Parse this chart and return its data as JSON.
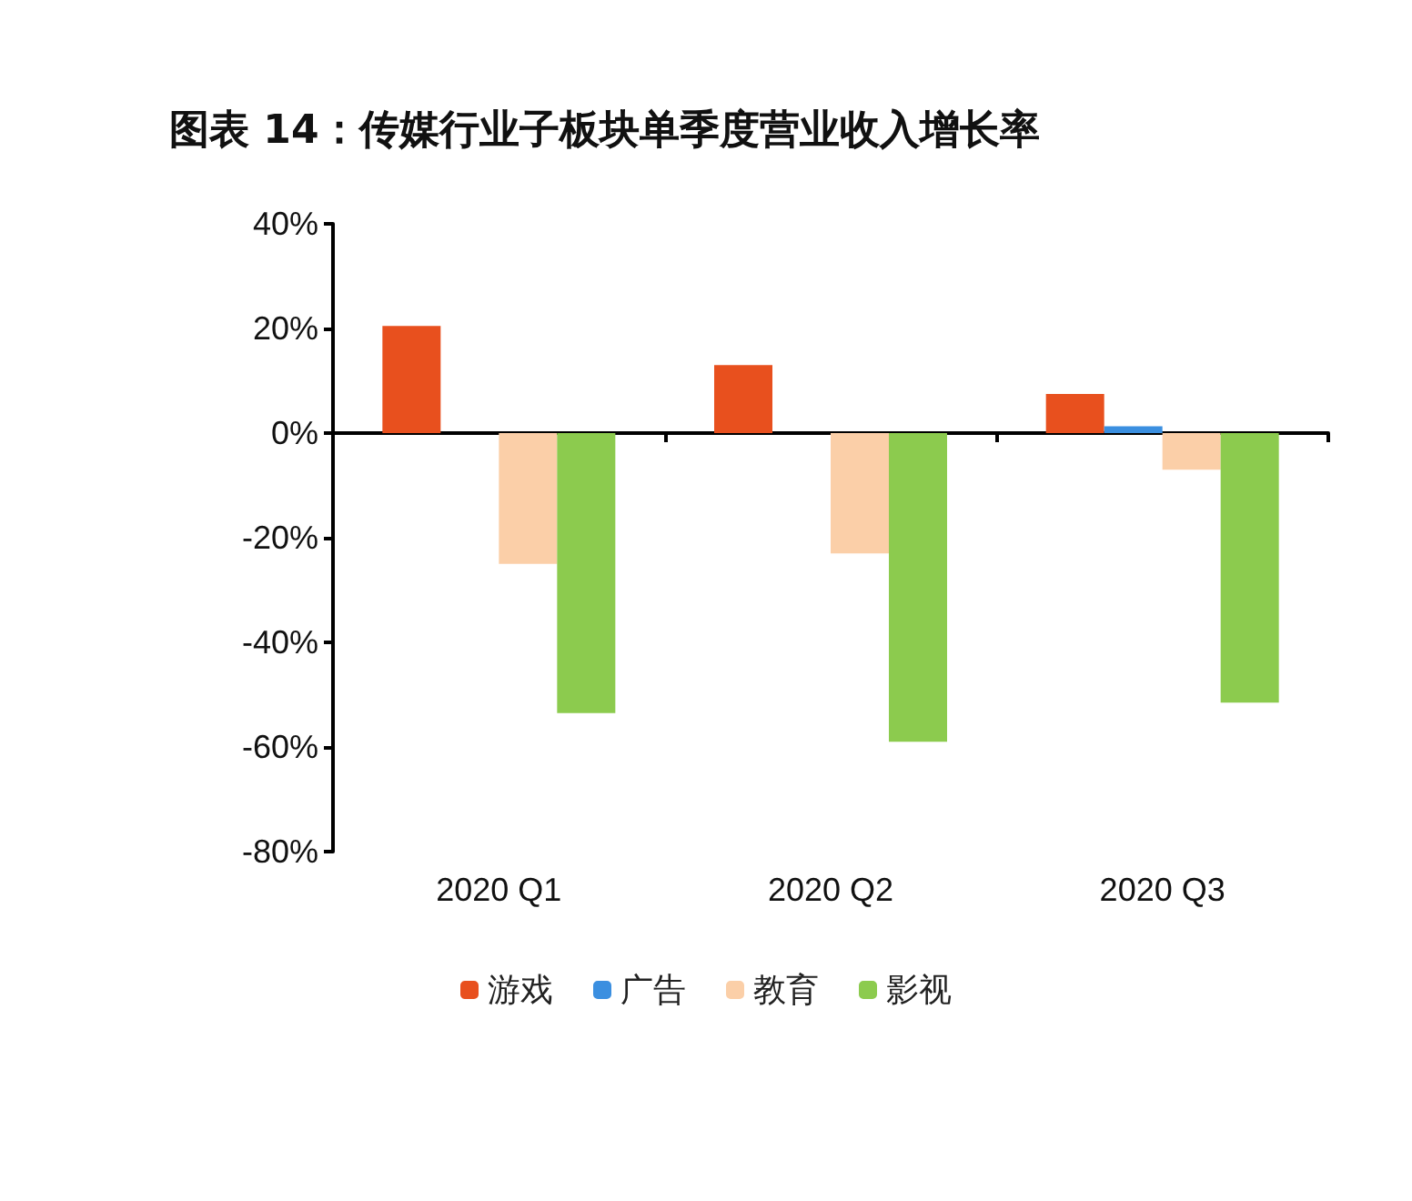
{
  "chart_data": {
    "type": "bar",
    "title": "图表 14：传媒行业子板块单季度营业收入增长率",
    "categories": [
      "2020 Q1",
      "2020 Q2",
      "2020 Q3"
    ],
    "series": [
      {
        "name": "游戏",
        "color": "#e8501e",
        "values": [
          20.5,
          13,
          7.5
        ]
      },
      {
        "name": "广告",
        "color": "#3b8fe0",
        "values": [
          null,
          null,
          1.3
        ]
      },
      {
        "name": "教育",
        "color": "#fbcfa8",
        "values": [
          -25,
          -23,
          -7
        ]
      },
      {
        "name": "影视",
        "color": "#8ccb4e",
        "values": [
          -53.5,
          -59,
          -51.5
        ]
      }
    ],
    "ylim": [
      -80,
      40
    ],
    "yticks": [
      {
        "value": -80,
        "label": "-80%"
      },
      {
        "value": -60,
        "label": "-60%"
      },
      {
        "value": -40,
        "label": "-40%"
      },
      {
        "value": -20,
        "label": "-20%"
      },
      {
        "value": 0,
        "label": "0%"
      },
      {
        "value": 20,
        "label": "20%"
      },
      {
        "value": 40,
        "label": "40%"
      }
    ],
    "legend": "bottom"
  }
}
